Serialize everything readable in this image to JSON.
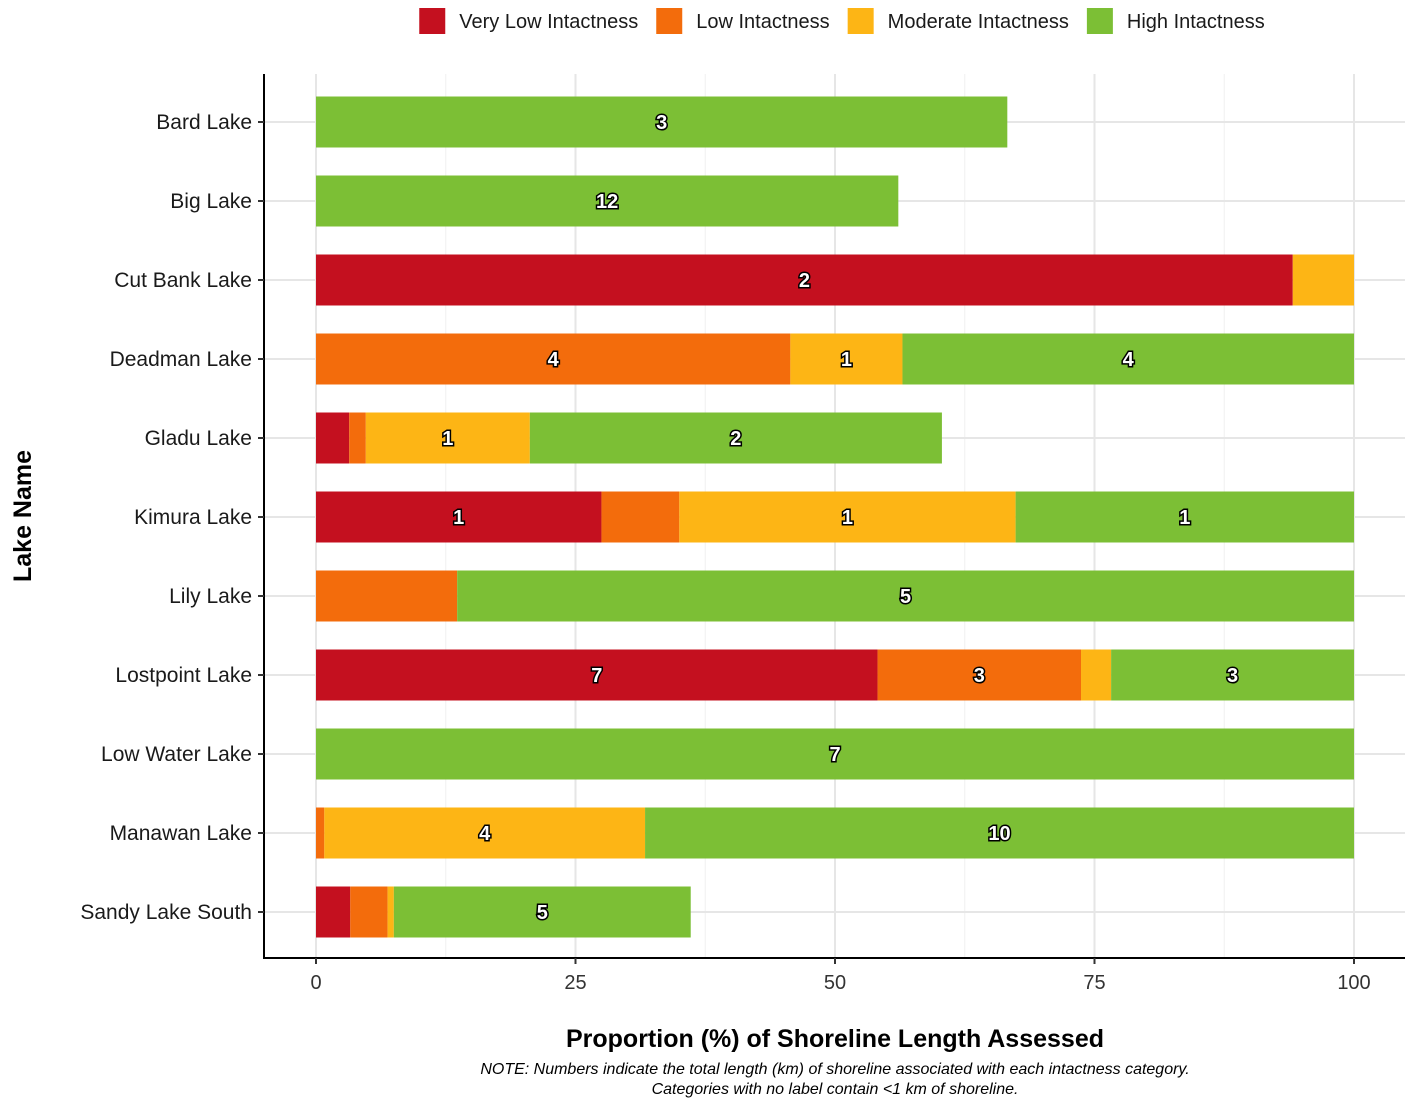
{
  "colors": {
    "very_low": "#c4101f",
    "low": "#f36c0c",
    "moderate": "#fdb515",
    "high": "#7cbf35",
    "grid_major": "#e6e6e6",
    "grid_minor": "#f0f0f0",
    "axis": "#000000"
  },
  "chart_data": {
    "type": "bar",
    "orientation": "horizontal",
    "stacked": true,
    "xlabel": "Proportion (%) of Shoreline Length Assessed",
    "ylabel": "Lake Name",
    "note_lines": [
      "NOTE: Numbers indicate the total length (km) of shoreline associated with each intactness category.",
      "Categories with no label contain <1 km of shoreline."
    ],
    "xlim": [
      0,
      100
    ],
    "x_ticks": [
      "0",
      "25",
      "50",
      "75",
      "100"
    ],
    "grid": true,
    "legend_position": "top",
    "categories": [
      "Bard Lake",
      "Big Lake",
      "Cut Bank Lake",
      "Deadman Lake",
      "Gladu Lake",
      "Kimura Lake",
      "Lily Lake",
      "Lostpoint Lake",
      "Low Water Lake",
      "Manawan Lake",
      "Sandy Lake South"
    ],
    "series": [
      {
        "name": "Very Low Intactness",
        "color_key": "very_low",
        "values": [
          0,
          0,
          94.1,
          0,
          3.2,
          27.5,
          0,
          54.1,
          0,
          0,
          3.3
        ],
        "labels": [
          "",
          "",
          "2",
          "",
          "",
          "1",
          "",
          "7",
          "",
          "",
          ""
        ]
      },
      {
        "name": "Low Intactness",
        "color_key": "low",
        "values": [
          0,
          0,
          0,
          45.7,
          1.6,
          7.5,
          13.6,
          19.6,
          0,
          0.8,
          3.6
        ],
        "labels": [
          "",
          "",
          "",
          "4",
          "",
          "",
          "",
          "3",
          "",
          "",
          ""
        ]
      },
      {
        "name": "Moderate Intactness",
        "color_key": "moderate",
        "values": [
          0,
          0,
          5.9,
          10.8,
          15.8,
          32.4,
          0,
          2.9,
          0,
          30.9,
          0.6
        ],
        "labels": [
          "",
          "",
          "",
          "1",
          "1",
          "1",
          "",
          "",
          "",
          "4",
          ""
        ]
      },
      {
        "name": "High Intactness",
        "color_key": "high",
        "values": [
          66.6,
          56.1,
          0,
          43.5,
          39.7,
          32.6,
          86.4,
          23.4,
          100,
          68.3,
          28.6
        ],
        "labels": [
          "3",
          "12",
          "",
          "4",
          "2",
          "1",
          "5",
          "3",
          "7",
          "10",
          "5"
        ]
      }
    ]
  }
}
